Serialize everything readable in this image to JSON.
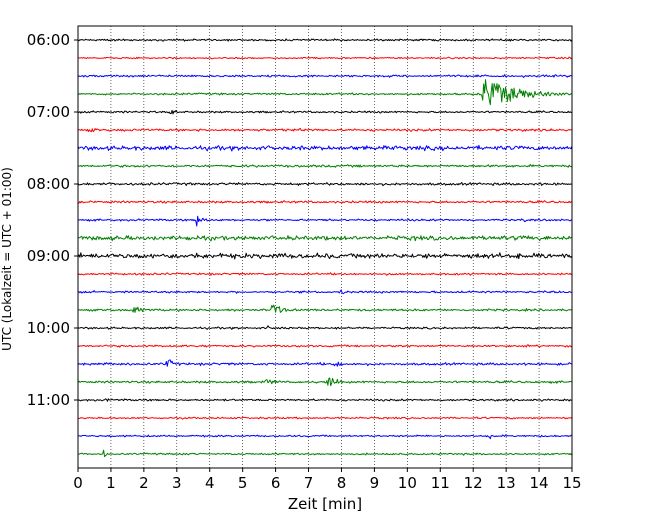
{
  "chart_data": {
    "type": "line",
    "subtype": "helicorder",
    "xlabel": "Zeit  [min]",
    "ylabel": "UTC (Lokalzeit = UTC + 01:00)",
    "xlim": [
      0,
      15
    ],
    "x_ticks": [
      "0",
      "1",
      "2",
      "3",
      "4",
      "5",
      "6",
      "7",
      "8",
      "9",
      "10",
      "11",
      "12",
      "13",
      "14",
      "15"
    ],
    "y_tick_labels": [
      "06:00",
      "07:00",
      "08:00",
      "09:00",
      "10:00",
      "11:00"
    ],
    "row_minutes": 15,
    "start_time": "06:00",
    "grid": "vertical dotted at each minute",
    "colors": [
      "#000000",
      "#ff0000",
      "#0000ff",
      "#008000"
    ],
    "rows": [
      {
        "time": "06:00",
        "color": "black",
        "noise": 1.0
      },
      {
        "time": "06:15",
        "color": "red",
        "noise": 0.8
      },
      {
        "time": "06:30",
        "color": "blue",
        "noise": 1.1
      },
      {
        "time": "06:45",
        "color": "green",
        "noise": 1.0,
        "events": [
          {
            "t": 12.3,
            "amp": 18,
            "dur": 1.6
          }
        ]
      },
      {
        "time": "07:00",
        "color": "black",
        "noise": 1.0,
        "events": [
          {
            "t": 2.8,
            "amp": 5,
            "dur": 0.2
          }
        ]
      },
      {
        "time": "07:15",
        "color": "red",
        "noise": 1.2,
        "events": [
          {
            "t": 0.4,
            "amp": 3,
            "dur": 0.2
          },
          {
            "t": 6.6,
            "amp": 3,
            "dur": 0.2
          },
          {
            "t": 14.4,
            "amp": 3,
            "dur": 0.2
          }
        ]
      },
      {
        "time": "07:30",
        "color": "blue",
        "noise": 2.2
      },
      {
        "time": "07:45",
        "color": "green",
        "noise": 1.2
      },
      {
        "time": "08:00",
        "color": "black",
        "noise": 1.3
      },
      {
        "time": "08:15",
        "color": "red",
        "noise": 1.1
      },
      {
        "time": "08:30",
        "color": "blue",
        "noise": 1.0,
        "events": [
          {
            "t": 3.6,
            "amp": 9,
            "dur": 0.25
          },
          {
            "t": 13.5,
            "amp": 3,
            "dur": 0.2
          }
        ]
      },
      {
        "time": "08:45",
        "color": "green",
        "noise": 2.2
      },
      {
        "time": "09:00",
        "color": "black",
        "noise": 2.6
      },
      {
        "time": "09:15",
        "color": "red",
        "noise": 1.0
      },
      {
        "time": "09:30",
        "color": "blue",
        "noise": 1.0,
        "events": [
          {
            "t": 8.0,
            "amp": 3,
            "dur": 0.2
          }
        ]
      },
      {
        "time": "09:45",
        "color": "green",
        "noise": 1.1,
        "events": [
          {
            "t": 1.7,
            "amp": 6,
            "dur": 0.3
          },
          {
            "t": 5.9,
            "amp": 8,
            "dur": 0.4
          }
        ]
      },
      {
        "time": "10:00",
        "color": "black",
        "noise": 1.0,
        "events": [
          {
            "t": 5.7,
            "amp": 4,
            "dur": 0.15
          }
        ]
      },
      {
        "time": "10:15",
        "color": "red",
        "noise": 1.0
      },
      {
        "time": "10:30",
        "color": "blue",
        "noise": 1.2,
        "events": [
          {
            "t": 2.7,
            "amp": 7,
            "dur": 0.25
          },
          {
            "t": 7.8,
            "amp": 3,
            "dur": 0.6
          }
        ]
      },
      {
        "time": "10:45",
        "color": "green",
        "noise": 1.1,
        "events": [
          {
            "t": 5.6,
            "amp": 3,
            "dur": 0.6
          },
          {
            "t": 7.6,
            "amp": 5,
            "dur": 0.5
          }
        ]
      },
      {
        "time": "11:00",
        "color": "black",
        "noise": 1.0,
        "events": [
          {
            "t": 0.9,
            "amp": 3,
            "dur": 0.1
          }
        ]
      },
      {
        "time": "11:15",
        "color": "red",
        "noise": 0.9
      },
      {
        "time": "11:30",
        "color": "blue",
        "noise": 0.9,
        "events": [
          {
            "t": 12.5,
            "amp": 3,
            "dur": 0.2
          }
        ]
      },
      {
        "time": "11:45",
        "color": "green",
        "noise": 0.9,
        "events": [
          {
            "t": 0.8,
            "amp": 7,
            "dur": 0.1
          }
        ]
      }
    ]
  }
}
